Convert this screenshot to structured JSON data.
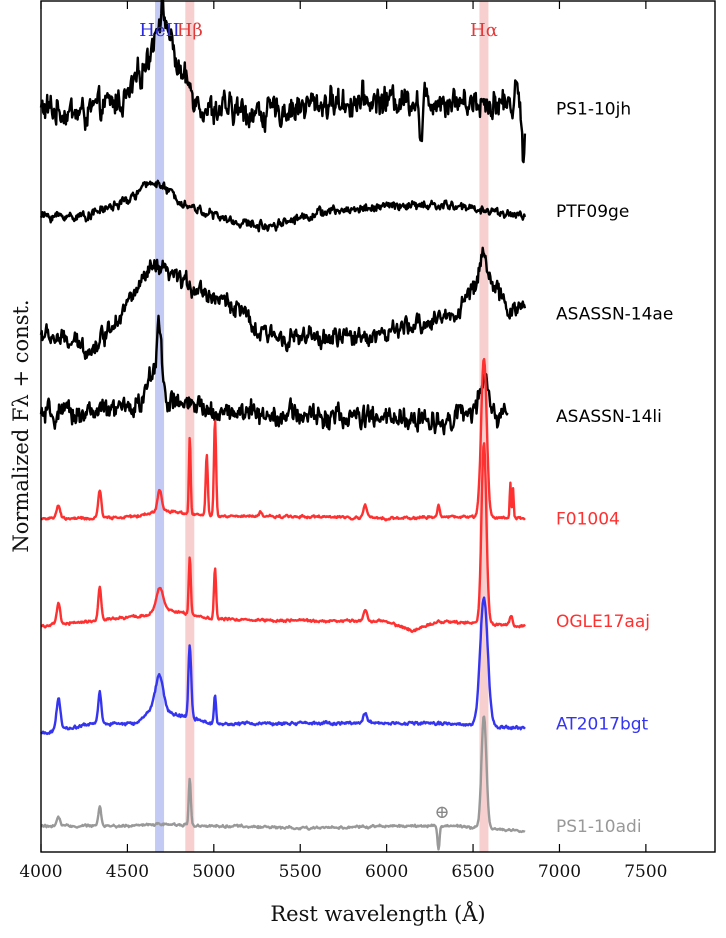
{
  "chart_data": {
    "type": "line",
    "xlabel": "Rest wavelength (Å)",
    "ylabel": "Normalized Fλ + const.",
    "xlim": [
      4000,
      7900
    ],
    "x_ticks": [
      "4000",
      "4500",
      "5000",
      "5500",
      "6000",
      "6500",
      "7000",
      "7500"
    ],
    "grid": false,
    "line_markers": [
      {
        "label": "HeII",
        "wavelength": 4686,
        "color": "#2b2bdc",
        "fill": "#bcc4f2"
      },
      {
        "label": "Hβ",
        "wavelength": 4861,
        "color": "#e23a3a",
        "fill": "#f7caca"
      },
      {
        "label": "Hα",
        "wavelength": 6563,
        "color": "#e23a3a",
        "fill": "#f7caca"
      }
    ],
    "telluric_marker": {
      "symbol": "⊕",
      "wavelength": 6320
    },
    "series": [
      {
        "name": "PS1-10jh",
        "color": "#000000",
        "x_range": [
          4000,
          6800
        ],
        "offset": 7.0,
        "noise": 0.22,
        "continuum": [
          [
            4000,
            0.0
          ],
          [
            4250,
            -0.05
          ],
          [
            4500,
            0.1
          ],
          [
            4620,
            0.5
          ],
          [
            4700,
            1.0
          ],
          [
            4800,
            0.35
          ],
          [
            4950,
            0.0
          ],
          [
            5300,
            -0.05
          ],
          [
            5600,
            0.05
          ],
          [
            6200,
            0.1
          ],
          [
            6700,
            0.05
          ],
          [
            6800,
            -0.1
          ]
        ],
        "features": [
          [
            6200,
            -0.45,
            8
          ],
          [
            6750,
            0.35,
            10
          ],
          [
            6790,
            -0.35,
            8
          ]
        ]
      },
      {
        "name": "PTF09ge",
        "color": "#000000",
        "x_range": [
          4000,
          6800
        ],
        "offset": 6.0,
        "noise": 0.07,
        "continuum": [
          [
            4000,
            -0.05
          ],
          [
            4250,
            -0.05
          ],
          [
            4500,
            0.1
          ],
          [
            4650,
            0.3
          ],
          [
            4850,
            0.05
          ],
          [
            5100,
            -0.1
          ],
          [
            5300,
            -0.15
          ],
          [
            5600,
            -0.02
          ],
          [
            6000,
            0.05
          ],
          [
            6400,
            0.05
          ],
          [
            6800,
            -0.05
          ]
        ],
        "features": []
      },
      {
        "name": "ASASSN-14ae",
        "color": "#000000",
        "x_range": [
          4000,
          6800
        ],
        "offset": 5.0,
        "noise": 0.14,
        "continuum": [
          [
            4000,
            -0.2
          ],
          [
            4300,
            -0.35
          ],
          [
            4500,
            0.1
          ],
          [
            4650,
            0.45
          ],
          [
            4900,
            0.25
          ],
          [
            5150,
            0.05
          ],
          [
            5250,
            -0.2
          ],
          [
            5600,
            -0.25
          ],
          [
            6000,
            -0.2
          ],
          [
            6400,
            0.0
          ],
          [
            6560,
            0.4
          ],
          [
            6700,
            0.05
          ],
          [
            6800,
            0.05
          ]
        ],
        "features": [
          [
            6563,
            0.25,
            18
          ]
        ]
      },
      {
        "name": "ASASSN-14li",
        "color": "#000000",
        "x_range": [
          4000,
          6700
        ],
        "offset": 4.0,
        "noise": 0.17,
        "continuum": [
          [
            4000,
            0.0
          ],
          [
            4400,
            0.05
          ],
          [
            4700,
            0.15
          ],
          [
            5000,
            0.05
          ],
          [
            5600,
            0.0
          ],
          [
            6300,
            -0.05
          ],
          [
            6500,
            0.05
          ],
          [
            6700,
            0.0
          ]
        ],
        "features": [
          [
            4686,
            0.75,
            13
          ],
          [
            4640,
            0.25,
            30
          ],
          [
            6563,
            0.3,
            22
          ]
        ]
      },
      {
        "name": "F01004",
        "color": "#ff3030",
        "x_range": [
          4000,
          6800
        ],
        "offset": 3.0,
        "noise": 0.02,
        "continuum": [
          [
            4000,
            0.0
          ],
          [
            4300,
            0.0
          ],
          [
            4550,
            0.02
          ],
          [
            4700,
            0.08
          ],
          [
            5000,
            0.02
          ],
          [
            5500,
            0.02
          ],
          [
            6000,
            0.0
          ],
          [
            6400,
            0.02
          ],
          [
            6800,
            0.0
          ]
        ],
        "features": [
          [
            4101,
            0.13,
            10
          ],
          [
            4340,
            0.28,
            9
          ],
          [
            4686,
            0.2,
            12
          ],
          [
            4861,
            0.75,
            5
          ],
          [
            4959,
            0.6,
            6
          ],
          [
            5007,
            0.95,
            6
          ],
          [
            5270,
            0.05,
            8
          ],
          [
            5876,
            0.14,
            10
          ],
          [
            6300,
            0.12,
            6
          ],
          [
            6563,
            1.55,
            16
          ],
          [
            6716,
            0.35,
            4
          ],
          [
            6731,
            0.3,
            4
          ]
        ]
      },
      {
        "name": "OGLE17aaj",
        "color": "#ff3030",
        "x_range": [
          4000,
          6800
        ],
        "offset": 2.0,
        "noise": 0.02,
        "continuum": [
          [
            4000,
            -0.05
          ],
          [
            4300,
            0.0
          ],
          [
            4600,
            0.05
          ],
          [
            4700,
            0.12
          ],
          [
            5000,
            0.02
          ],
          [
            5600,
            0.0
          ],
          [
            6000,
            0.0
          ],
          [
            6150,
            -0.1
          ],
          [
            6300,
            0.0
          ],
          [
            6800,
            -0.05
          ]
        ],
        "features": [
          [
            4101,
            0.2,
            10
          ],
          [
            4340,
            0.32,
            9
          ],
          [
            4686,
            0.2,
            20
          ],
          [
            4861,
            0.55,
            6
          ],
          [
            5007,
            0.5,
            6
          ],
          [
            5876,
            0.12,
            10
          ],
          [
            6563,
            1.75,
            14
          ],
          [
            6720,
            0.1,
            8
          ]
        ]
      },
      {
        "name": "AT2017bgt",
        "color": "#3535f0",
        "x_range": [
          4000,
          6800
        ],
        "offset": 1.0,
        "noise": 0.025,
        "continuum": [
          [
            4000,
            -0.1
          ],
          [
            4300,
            0.0
          ],
          [
            4550,
            0.0
          ],
          [
            4650,
            0.15
          ],
          [
            4750,
            0.1
          ],
          [
            5000,
            0.0
          ],
          [
            5600,
            0.0
          ],
          [
            6400,
            0.0
          ],
          [
            6800,
            -0.05
          ]
        ],
        "features": [
          [
            4101,
            0.3,
            12
          ],
          [
            4340,
            0.3,
            9
          ],
          [
            4686,
            0.35,
            22
          ],
          [
            4861,
            0.72,
            8
          ],
          [
            5007,
            0.28,
            6
          ],
          [
            5876,
            0.1,
            12
          ],
          [
            6563,
            1.25,
            22
          ]
        ]
      },
      {
        "name": "PS1-10adi",
        "color": "#999999",
        "x_range": [
          4000,
          6800
        ],
        "offset": 0.0,
        "noise": 0.02,
        "continuum": [
          [
            4000,
            0.0
          ],
          [
            4500,
            0.0
          ],
          [
            4700,
            0.02
          ],
          [
            5000,
            0.0
          ],
          [
            5600,
            -0.02
          ],
          [
            6000,
            0.0
          ],
          [
            6400,
            0.0
          ],
          [
            6800,
            -0.05
          ]
        ],
        "features": [
          [
            4101,
            0.08,
            10
          ],
          [
            4340,
            0.2,
            8
          ],
          [
            4861,
            0.45,
            6
          ],
          [
            6300,
            -0.25,
            6
          ],
          [
            6563,
            1.1,
            14
          ]
        ]
      }
    ]
  }
}
